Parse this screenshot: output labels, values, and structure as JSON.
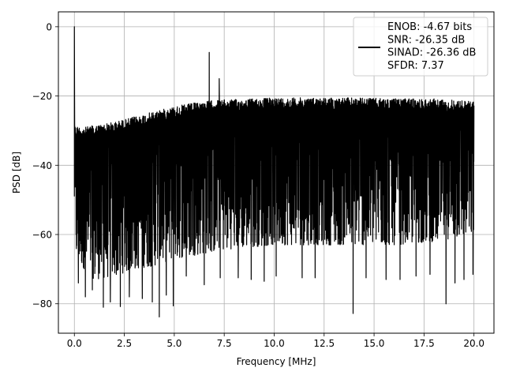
{
  "chart_data": {
    "type": "line",
    "xlabel": "Frequency [MHz]",
    "ylabel": "PSD [dB]",
    "xlim": [
      -0.8,
      21.0
    ],
    "ylim": [
      -88.5,
      4.3
    ],
    "xticks": [
      0.0,
      2.5,
      5.0,
      7.5,
      10.0,
      12.5,
      15.0,
      17.5,
      20.0
    ],
    "xtick_labels": [
      "0.0",
      "2.5",
      "5.0",
      "7.5",
      "10.0",
      "12.5",
      "15.0",
      "17.5",
      "20.0"
    ],
    "yticks": [
      0,
      -20,
      -40,
      -60,
      -80
    ],
    "ytick_labels": [
      "0",
      "−20",
      "−40",
      "−60",
      "−80"
    ],
    "grid": true,
    "legend": {
      "placement": "top-right",
      "entries": [
        "ENOB: -4.67 bits",
        "SNR: -26.35 dB",
        "SINAD: -26.36 dB",
        "SFDR: 7.37"
      ]
    },
    "series": [
      {
        "color": "#000000",
        "x_range": [
          0.0,
          20.0
        ],
        "peak_envelope": [
          [
            0.0,
            -28.5
          ],
          [
            0.5,
            -29.0
          ],
          [
            1.0,
            -28.5
          ],
          [
            2.0,
            -27.5
          ],
          [
            3.0,
            -26.0
          ],
          [
            4.0,
            -24.5
          ],
          [
            5.0,
            -23.0
          ],
          [
            6.0,
            -22.0
          ],
          [
            7.0,
            -21.2
          ],
          [
            8.0,
            -21.0
          ],
          [
            10.0,
            -20.5
          ],
          [
            12.0,
            -20.5
          ],
          [
            14.0,
            -20.5
          ],
          [
            16.0,
            -20.8
          ],
          [
            18.0,
            -20.8
          ],
          [
            20.0,
            -21.5
          ]
        ],
        "floor_envelope": [
          [
            0.0,
            -66.0
          ],
          [
            0.5,
            -70.0
          ],
          [
            1.0,
            -73.0
          ],
          [
            2.0,
            -72.0
          ],
          [
            3.0,
            -70.0
          ],
          [
            4.0,
            -69.0
          ],
          [
            5.0,
            -67.0
          ],
          [
            6.0,
            -66.0
          ],
          [
            8.0,
            -64.0
          ],
          [
            10.0,
            -63.0
          ],
          [
            12.0,
            -63.0
          ],
          [
            14.0,
            -63.0
          ],
          [
            16.0,
            -63.0
          ],
          [
            18.0,
            -62.0
          ],
          [
            20.0,
            -60.0
          ]
        ],
        "spikes": [
          {
            "x": 0.0,
            "y": 0.0
          },
          {
            "x": 6.75,
            "y": -7.4
          },
          {
            "x": 7.25,
            "y": -15.0
          }
        ],
        "dips": [
          {
            "x": 0.2,
            "y": -74.0
          },
          {
            "x": 0.55,
            "y": -78.0
          },
          {
            "x": 0.9,
            "y": -76.0
          },
          {
            "x": 1.45,
            "y": -81.0
          },
          {
            "x": 1.8,
            "y": -79.5
          },
          {
            "x": 2.3,
            "y": -80.8
          },
          {
            "x": 2.75,
            "y": -78.0
          },
          {
            "x": 3.4,
            "y": -78.5
          },
          {
            "x": 3.9,
            "y": -79.5
          },
          {
            "x": 4.25,
            "y": -83.8
          },
          {
            "x": 4.6,
            "y": -77.5
          },
          {
            "x": 4.95,
            "y": -80.6
          },
          {
            "x": 5.6,
            "y": -72.0
          },
          {
            "x": 6.5,
            "y": -74.5
          },
          {
            "x": 7.3,
            "y": -72.5
          },
          {
            "x": 8.2,
            "y": -72.5
          },
          {
            "x": 8.85,
            "y": -73.0
          },
          {
            "x": 9.5,
            "y": -73.5
          },
          {
            "x": 10.1,
            "y": -72.0
          },
          {
            "x": 11.4,
            "y": -72.5
          },
          {
            "x": 12.05,
            "y": -72.5
          },
          {
            "x": 13.95,
            "y": -82.8
          },
          {
            "x": 14.6,
            "y": -72.5
          },
          {
            "x": 15.6,
            "y": -73.0
          },
          {
            "x": 16.3,
            "y": -73.0
          },
          {
            "x": 17.1,
            "y": -72.0
          },
          {
            "x": 17.8,
            "y": -71.5
          },
          {
            "x": 18.6,
            "y": -80.0
          },
          {
            "x": 19.05,
            "y": -74.0
          },
          {
            "x": 19.5,
            "y": -73.0
          },
          {
            "x": 19.95,
            "y": -71.5
          }
        ]
      }
    ]
  }
}
